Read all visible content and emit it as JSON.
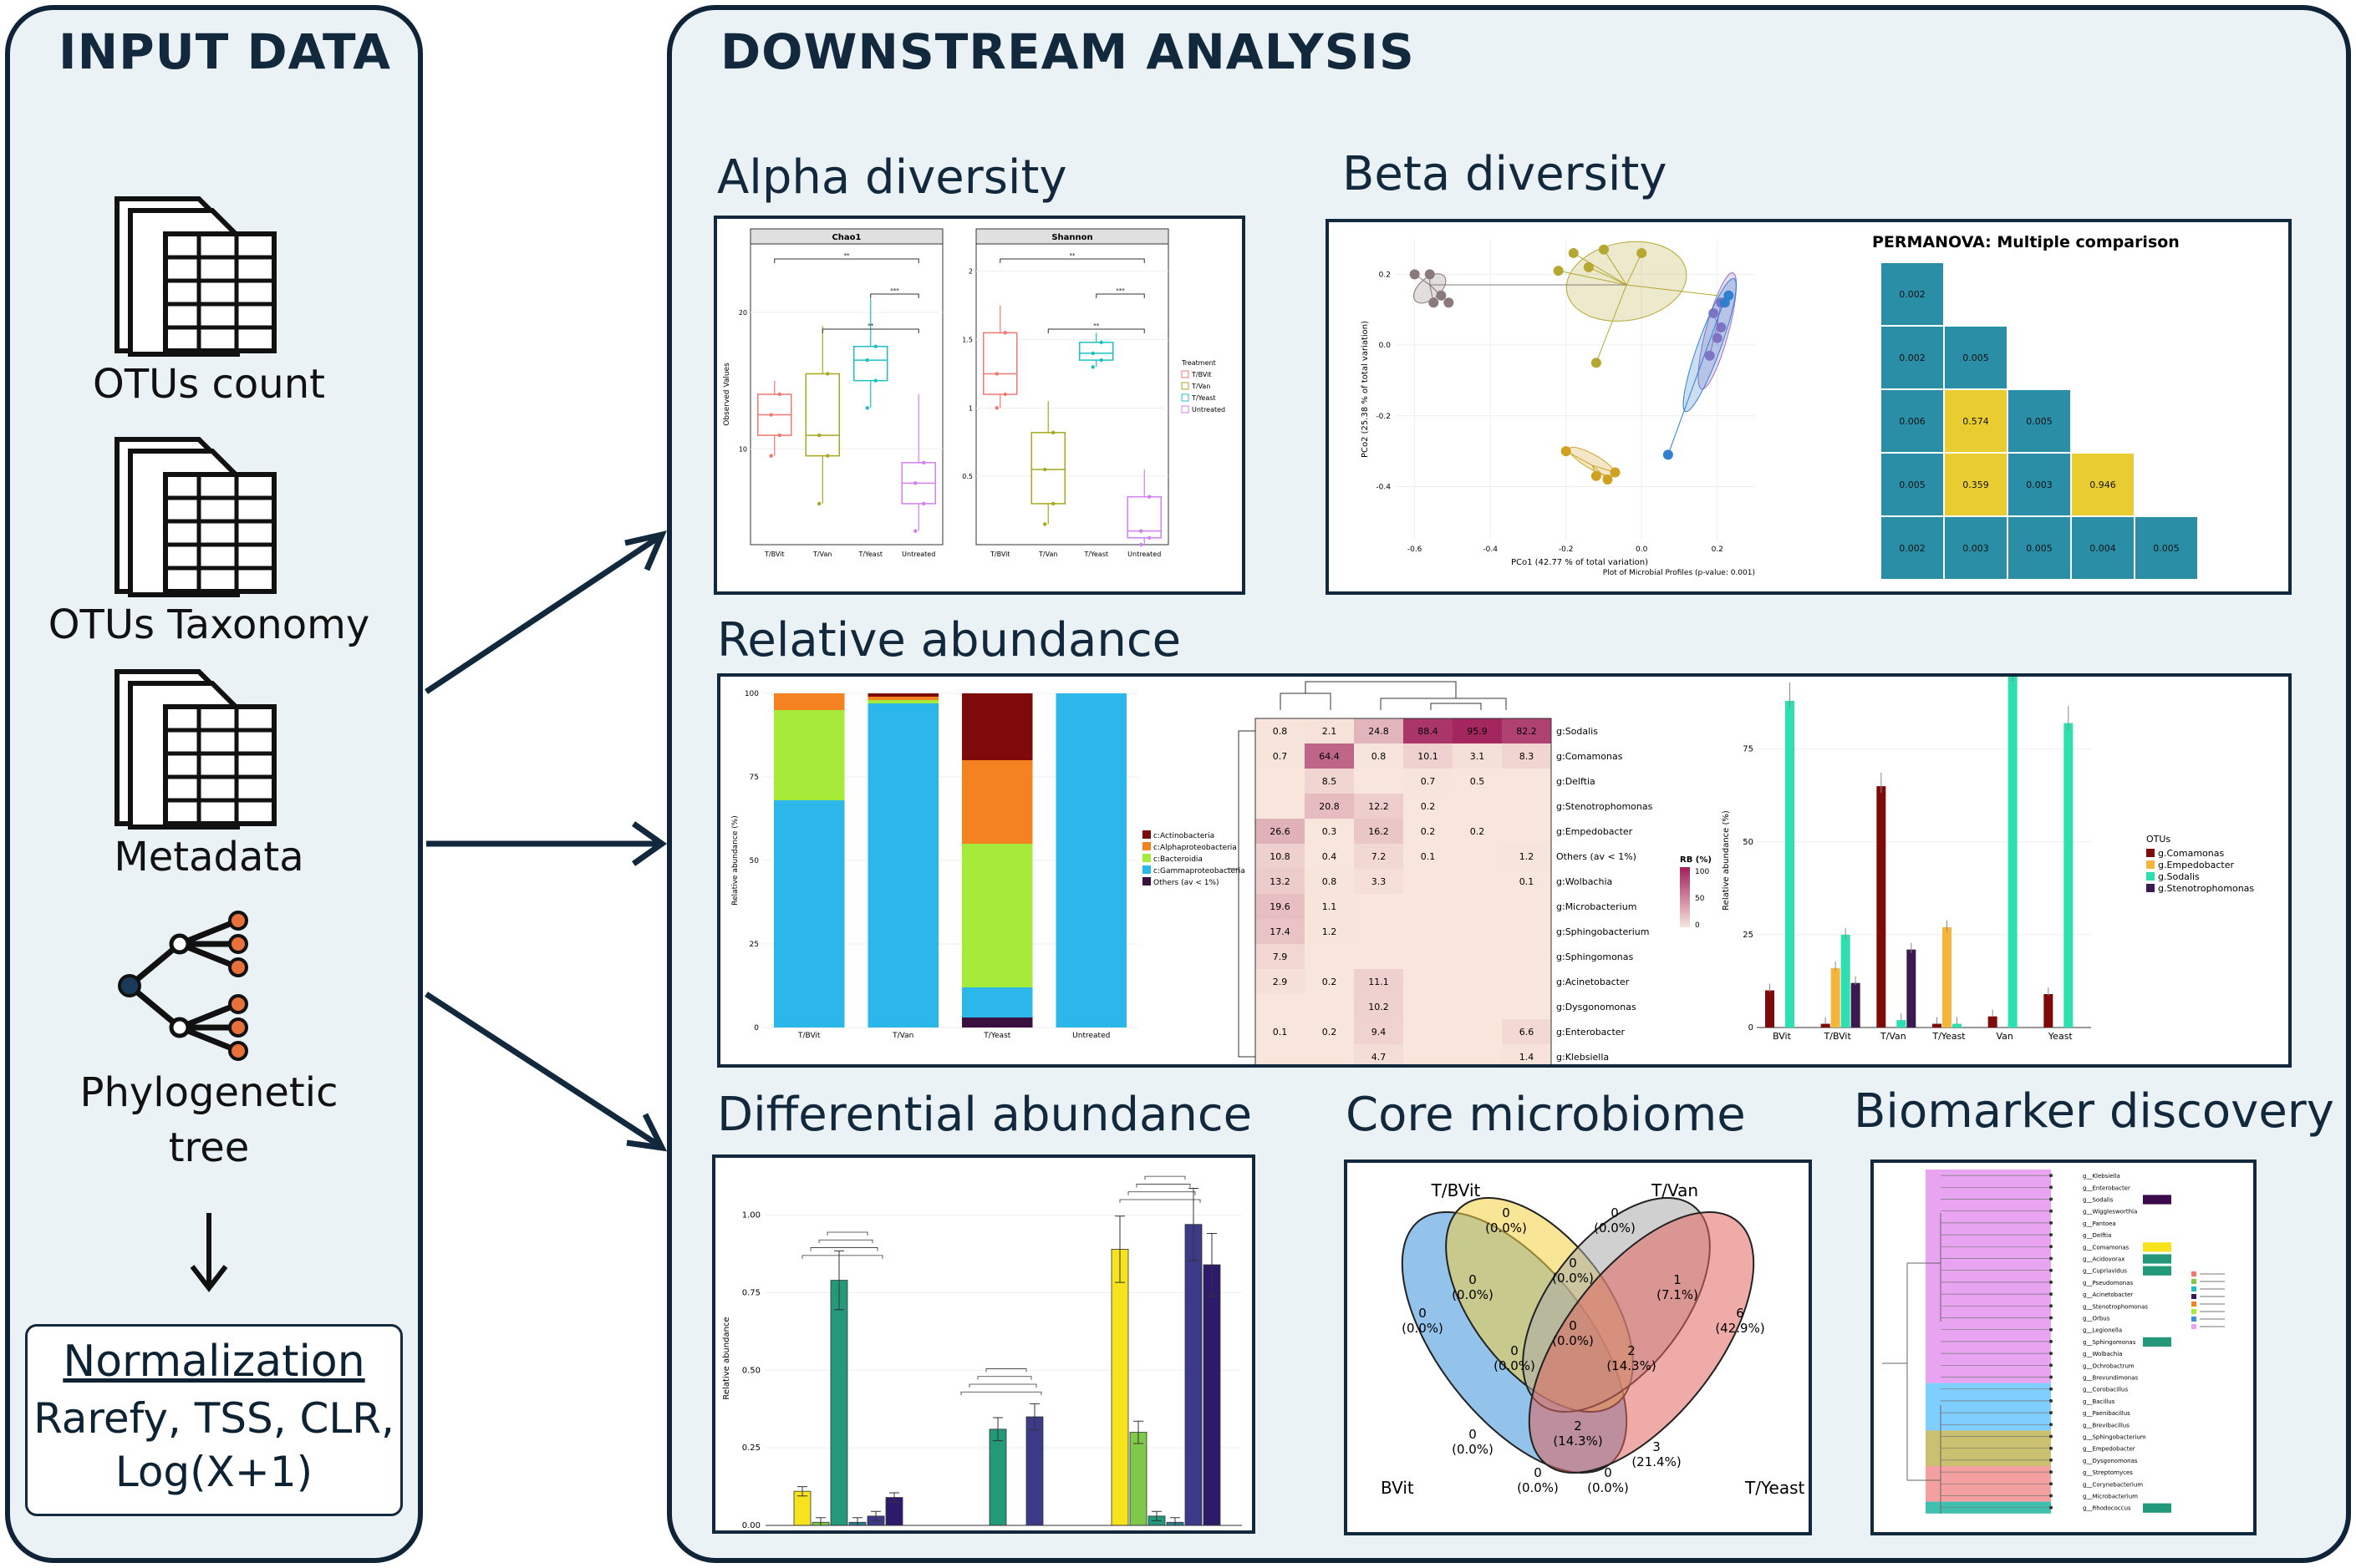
{
  "input": {
    "title": "INPUT DATA",
    "items": [
      {
        "label": "OTUs count",
        "icon": "spreadsheet-icon"
      },
      {
        "label": "OTUs Taxonomy",
        "icon": "spreadsheet-icon"
      },
      {
        "label": "Metadata",
        "icon": "spreadsheet-icon"
      },
      {
        "label": "Phylogenetic tree",
        "icon": "tree-icon"
      }
    ],
    "normalization": {
      "title": "Normalization",
      "methods": "Rarefy, TSS, CLR, Log(X+1)"
    }
  },
  "downstream": {
    "title": "DOWNSTREAM ANALYSIS",
    "sections": {
      "alpha": "Alpha diversity",
      "beta": "Beta diversity",
      "relab": "Relative abundance",
      "diff": "Differential abundance",
      "core": "Core microbiome",
      "biomarker": "Biomarker discovery"
    }
  },
  "chart_data": [
    {
      "id": "alpha",
      "type": "box",
      "panels": [
        "Chao1",
        "Shannon"
      ],
      "categories": [
        "T/BVit",
        "T/Van",
        "T/Yeast",
        "Untreated"
      ],
      "ylabel": "Observed Values",
      "legend_title": "Treatment",
      "legend": [
        "T/BVit",
        "T/Van",
        "T/Yeast",
        "Untreated"
      ],
      "colors": [
        "#f07870",
        "#a8a820",
        "#20c0c0",
        "#d080f0"
      ],
      "chao1": {
        "ylim": [
          3,
          25
        ],
        "ticks": [
          10,
          20
        ],
        "median": [
          12.5,
          11,
          16.5,
          7.5
        ],
        "q1": [
          11,
          9.5,
          15,
          6
        ],
        "q3": [
          14,
          15.5,
          17.5,
          9
        ],
        "min": [
          9.5,
          6,
          13,
          4
        ],
        "max": [
          15,
          19,
          21,
          14
        ]
      },
      "shannon": {
        "ylim": [
          0,
          2.2
        ],
        "ticks": [
          0.5,
          1.0,
          1.5,
          2.0
        ],
        "median": [
          1.25,
          0.55,
          1.4,
          0.1
        ],
        "q1": [
          1.1,
          0.3,
          1.35,
          0.05
        ],
        "q3": [
          1.55,
          0.82,
          1.48,
          0.35
        ],
        "min": [
          1.0,
          0.15,
          1.3,
          0.0
        ],
        "max": [
          1.75,
          1.05,
          1.55,
          0.55
        ]
      },
      "significance": [
        "**",
        "***",
        "**"
      ]
    },
    {
      "id": "beta-pcoa",
      "type": "scatter",
      "xlabel": "PCo1 (42.77 % of total variation)",
      "ylabel": "PCo2 (25.38 % of total variation)",
      "xticks": [
        -0.6,
        -0.4,
        -0.2,
        0.0,
        0.2
      ],
      "yticks": [
        0.2,
        0.0,
        -0.2,
        -0.4
      ],
      "note": "Plot of Microbial Profiles (p-value: 0.001)"
    },
    {
      "id": "beta-permanova",
      "type": "heatmap",
      "title": "PERMANOVA: Multiple comparison",
      "rows": [
        [
          "0.002"
        ],
        [
          "0.002",
          "0.005"
        ],
        [
          "0.006",
          "0.574",
          "0.005"
        ],
        [
          "0.005",
          "0.359",
          "0.003",
          "0.946"
        ],
        [
          "0.002",
          "0.003",
          "0.005",
          "0.004",
          "0.005"
        ]
      ]
    },
    {
      "id": "relab-stacked",
      "type": "bar",
      "ylabel": "Relative abundance (%)",
      "yticks": [
        0,
        25,
        50,
        75,
        100
      ],
      "categories": [
        "T/BVit",
        "T/Van",
        "T/Yeast",
        "Untreated"
      ],
      "series": [
        {
          "name": "Others (av < 1%)",
          "color": "#3a1040",
          "values": [
            0,
            0,
            3,
            0
          ]
        },
        {
          "name": "c:Gammaproteobacteria",
          "color": "#2cb7ea",
          "values": [
            68,
            97,
            9,
            100
          ]
        },
        {
          "name": "c:Bacteroidia",
          "color": "#a6ea3a",
          "values": [
            27,
            1,
            43,
            0
          ]
        },
        {
          "name": "c:Alphaproteobacteria",
          "color": "#f58220",
          "values": [
            5,
            1,
            25,
            0
          ]
        },
        {
          "name": "c:Actinobacteria",
          "color": "#7e0a0a",
          "values": [
            0,
            1,
            20,
            0
          ]
        }
      ]
    },
    {
      "id": "relab-heatmap",
      "type": "heatmap",
      "legend_title": "RB (%)",
      "legend_ticks": [
        "100",
        "50",
        "0"
      ],
      "rows": [
        "g:Sodalis",
        "g:Comamonas",
        "g:Delftia",
        "g:Stenotrophomonas",
        "g:Empedobacter",
        "Others (av < 1%)",
        "g:Wolbachia",
        "g:Microbacterium",
        "g:Sphingobacterium",
        "g:Sphingomonas",
        "g:Acinetobacter",
        "g:Dysgonomonas",
        "g:Enterobacter",
        "g:Klebsiella"
      ],
      "values": [
        [
          "0.8",
          "2.1",
          "24.8",
          "88.4",
          "95.9",
          "82.2"
        ],
        [
          "0.7",
          "64.4",
          "0.8",
          "10.1",
          "3.1",
          "8.3"
        ],
        [
          "",
          "8.5",
          "",
          "0.7",
          "0.5",
          ""
        ],
        [
          "",
          "20.8",
          "12.2",
          "0.2",
          "",
          ""
        ],
        [
          "26.6",
          "0.3",
          "16.2",
          "0.2",
          "0.2",
          ""
        ],
        [
          "10.8",
          "0.4",
          "7.2",
          "0.1",
          "",
          "1.2"
        ],
        [
          "13.2",
          "0.8",
          "3.3",
          "",
          "",
          "0.1"
        ],
        [
          "19.6",
          "1.1",
          "",
          "",
          "",
          ""
        ],
        [
          "17.4",
          "1.2",
          "",
          "",
          "",
          ""
        ],
        [
          "7.9",
          "",
          "",
          "",
          "",
          ""
        ],
        [
          "2.9",
          "0.2",
          "11.1",
          "",
          "",
          ""
        ],
        [
          "",
          "",
          "10.2",
          "",
          "",
          ""
        ],
        [
          "0.1",
          "0.2",
          "9.4",
          "",
          "",
          "6.6"
        ],
        [
          "",
          "",
          "4.7",
          "",
          "",
          "1.4"
        ]
      ]
    },
    {
      "id": "relab-grouped",
      "type": "bar",
      "ylabel": "Relative abundance (%)",
      "yticks": [
        0,
        25,
        50,
        75
      ],
      "categories": [
        "BVit",
        "T/BVit",
        "T/Van",
        "T/Yeast",
        "Van",
        "Yeast"
      ],
      "legend_title": "OTUs",
      "series": [
        {
          "name": "g.Comamonas",
          "color": "#7e0a0a",
          "values": [
            10,
            1,
            65,
            1,
            3,
            9
          ]
        },
        {
          "name": "g.Empedobacter",
          "color": "#f5b43a",
          "values": [
            0,
            16,
            0,
            27,
            0,
            0
          ]
        },
        {
          "name": "g.Sodalis",
          "color": "#2ee0b0",
          "values": [
            88,
            25,
            2,
            1,
            95,
            82
          ]
        },
        {
          "name": "g.Stenotrophomonas",
          "color": "#3a1a50",
          "values": [
            0,
            12,
            21,
            0,
            0,
            0
          ]
        }
      ]
    },
    {
      "id": "diff",
      "type": "bar",
      "ylabel": "Relative abundance",
      "yticks": [
        "0.00",
        "0.25",
        "0.50",
        "0.75",
        "1.00"
      ],
      "groups": [
        {
          "values": [
            0.11,
            0.01,
            0.79,
            0.01,
            0.03,
            0.09
          ]
        },
        {
          "values": [
            0.0,
            0.0,
            0.31,
            0.0,
            0.35,
            0.0
          ]
        },
        {
          "values": [
            0.89,
            0.3,
            0.03,
            0.01,
            0.97,
            0.84
          ]
        }
      ],
      "colors": [
        "#f7e21e",
        "#7ec84a",
        "#23997a",
        "#2d7a8c",
        "#3d3a8a",
        "#2d1a6a"
      ]
    },
    {
      "id": "core",
      "type": "venn",
      "sets": [
        "T/BVit",
        "T/Van",
        "BVit",
        "T/Yeast"
      ],
      "regions": [
        {
          "count": "0",
          "pct": "(0.0%)"
        },
        {
          "count": "0",
          "pct": "(0.0%)"
        },
        {
          "count": "0",
          "pct": "(0.0%)"
        },
        {
          "count": "0",
          "pct": "(0.0%)"
        },
        {
          "count": "0",
          "pct": "(0.0%)"
        },
        {
          "count": "1",
          "pct": "(7.1%)"
        },
        {
          "count": "6",
          "pct": "(42.9%)"
        },
        {
          "count": "0",
          "pct": "(0.0%)"
        },
        {
          "count": "2",
          "pct": "(14.3%)"
        },
        {
          "count": "0",
          "pct": "(0.0%)"
        },
        {
          "count": "2",
          "pct": "(14.3%)"
        },
        {
          "count": "3",
          "pct": "(21.4%)"
        },
        {
          "count": "0",
          "pct": "(0.0%)"
        },
        {
          "count": "0",
          "pct": "(0.0%)"
        },
        {
          "count": "0",
          "pct": "(0.0%)"
        }
      ]
    },
    {
      "id": "biomarker",
      "type": "tree",
      "taxa": [
        "g__Klebsiella",
        "g__Enterobacter",
        "g__Sodalis",
        "g__Wigglesworthia",
        "g__Pantoea",
        "g__Delftia",
        "g__Comamonas",
        "g__Acidovorax",
        "g__Cupriavidus",
        "g__Pseudomonas",
        "g__Acinetobacter",
        "g__Stenotrophomonas",
        "g__Orbus",
        "g__Legionella",
        "g__Sphingomonas",
        "g__Wolbachia",
        "g__Ochrobactrum",
        "g__Brevundimonas",
        "g__Corobacillus",
        "g__Bacillus",
        "g__Paenibacillus",
        "g__Brevibacillus",
        "g__Sphingobacterium",
        "g__Empedobacter",
        "g__Dysgonomonas",
        "g__Streptomyces",
        "g__Corynebacterium",
        "g__Microbacterium",
        "g__Rhodococcus"
      ]
    }
  ]
}
